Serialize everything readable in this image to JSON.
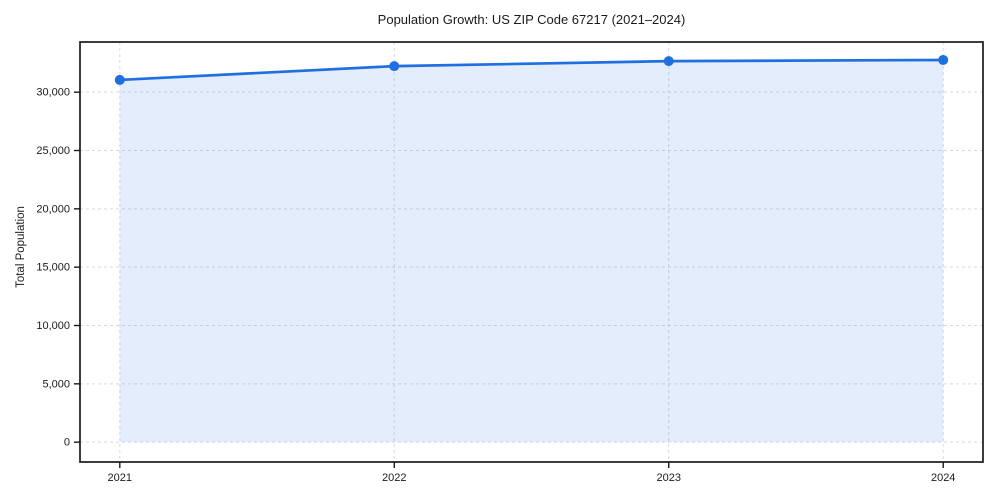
{
  "chart_data": {
    "type": "line",
    "title": "Population Growth: US ZIP Code 67217 (2021–2024)",
    "xlabel": "",
    "ylabel": "Total Population",
    "x": [
      2021,
      2022,
      2023,
      2024
    ],
    "series": [
      {
        "name": "Total Population",
        "values": [
          31050,
          32230,
          32660,
          32760
        ]
      }
    ],
    "area_fill": true,
    "marker": "circle",
    "grid": true,
    "legend": false,
    "xlim": [
      2020.855,
      2024.145
    ],
    "ylim": [
      -1700,
      34300
    ],
    "xticks": [
      2021,
      2022,
      2023,
      2024
    ],
    "xtick_labels": [
      "2021",
      "2022",
      "2023",
      "2024"
    ],
    "yticks": [
      0,
      5000,
      10000,
      15000,
      20000,
      25000,
      30000
    ],
    "ytick_labels": [
      "0",
      "5,000",
      "10,000",
      "15,000",
      "20,000",
      "25,000",
      "30,000"
    ],
    "colors": {
      "line": "#1f6fe0",
      "fill": "rgba(31,111,224,0.12)",
      "grid": "#d9d9d9",
      "spine": "#1a1a1a",
      "text": "#1a1a1a",
      "background": "#ffffff"
    }
  }
}
